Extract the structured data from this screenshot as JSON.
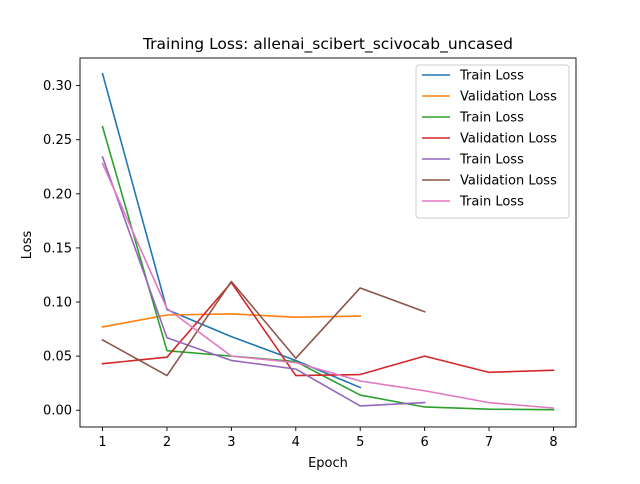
{
  "chart_data": {
    "type": "line",
    "title": "Training Loss: allenai_scibert_scivocab_uncased",
    "xlabel": "Epoch",
    "ylabel": "Loss",
    "xlim": [
      0.65,
      8.35
    ],
    "ylim": [
      -0.0155,
      0.3255
    ],
    "xticks": [
      1,
      2,
      3,
      4,
      5,
      6,
      7,
      8
    ],
    "xtick_labels": [
      "1",
      "2",
      "3",
      "4",
      "5",
      "6",
      "7",
      "8"
    ],
    "yticks": [
      0.0,
      0.05,
      0.1,
      0.15,
      0.2,
      0.25,
      0.3
    ],
    "ytick_labels": [
      "0.00",
      "0.05",
      "0.10",
      "0.15",
      "0.20",
      "0.25",
      "0.30"
    ],
    "grid": false,
    "legend_position": "top-right",
    "series": [
      {
        "name": "Train Loss",
        "color": "#1f77b4",
        "x": [
          1,
          2,
          3,
          4,
          5
        ],
        "values": [
          0.311,
          0.093,
          0.068,
          0.046,
          0.021
        ]
      },
      {
        "name": "Validation Loss",
        "color": "#ff7f0e",
        "x": [
          1,
          2,
          3,
          4,
          5
        ],
        "values": [
          0.077,
          0.088,
          0.089,
          0.086,
          0.087
        ]
      },
      {
        "name": "Train Loss",
        "color": "#2ca02c",
        "x": [
          1,
          2,
          3,
          4,
          5,
          6,
          7,
          8
        ],
        "values": [
          0.262,
          0.055,
          0.05,
          0.045,
          0.014,
          0.003,
          0.001,
          0.0005
        ]
      },
      {
        "name": "Validation Loss",
        "color": "#d62728",
        "x": [
          1,
          2,
          3,
          4,
          5,
          6,
          7,
          8
        ],
        "values": [
          0.043,
          0.049,
          0.118,
          0.032,
          0.033,
          0.05,
          0.035,
          0.037
        ]
      },
      {
        "name": "Train Loss",
        "color": "#9467bd",
        "x": [
          1,
          2,
          3,
          4,
          5,
          6
        ],
        "values": [
          0.234,
          0.067,
          0.046,
          0.038,
          0.004,
          0.007
        ]
      },
      {
        "name": "Validation Loss",
        "color": "#8c564b",
        "x": [
          1,
          2,
          3,
          4,
          5,
          6
        ],
        "values": [
          0.065,
          0.032,
          0.119,
          0.048,
          0.113,
          0.091
        ]
      },
      {
        "name": "Train Loss",
        "color": "#e377c2",
        "x": [
          1,
          2,
          3,
          4,
          5,
          6,
          7,
          8
        ],
        "values": [
          0.228,
          0.094,
          0.05,
          0.044,
          0.027,
          0.018,
          0.007,
          0.002
        ]
      }
    ]
  }
}
